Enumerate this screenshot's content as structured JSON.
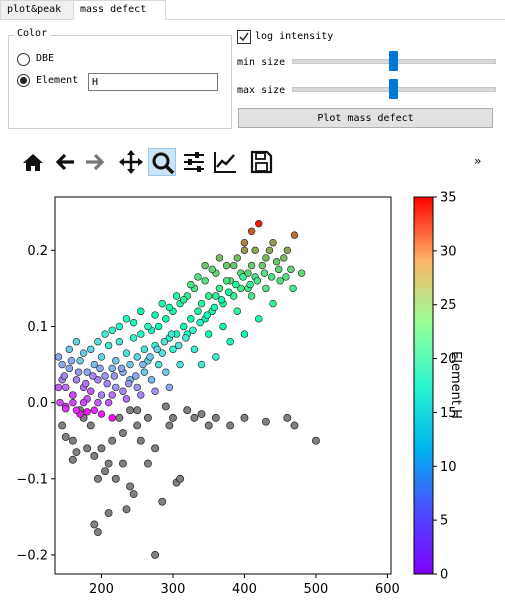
{
  "tabs": [
    {
      "label": "plot&peak",
      "active": false
    },
    {
      "label": "mass defect",
      "active": true
    }
  ],
  "color_group": {
    "title": "Color",
    "options": [
      {
        "label": "DBE",
        "selected": false
      },
      {
        "label": "Element",
        "selected": true
      }
    ],
    "element_value": "H"
  },
  "controls": {
    "log_intensity_label": "log intensity",
    "log_intensity_checked": true,
    "min_size_label": "min size",
    "min_size_level": 0.6,
    "max_size_label": "max size",
    "max_size_level": 0.6,
    "plot_button_label": "Plot  mass defect"
  },
  "toolbar": {
    "items": [
      {
        "name": "home-icon",
        "enabled": true
      },
      {
        "name": "back-arrow-icon",
        "enabled": true
      },
      {
        "name": "forward-arrow-icon",
        "enabled": false
      },
      {
        "name": "pan-icon",
        "enabled": true
      },
      {
        "name": "zoom-icon",
        "enabled": true,
        "active": true
      },
      {
        "name": "subplots-config-icon",
        "enabled": true
      },
      {
        "name": "edit-axis-icon",
        "enabled": true
      },
      {
        "name": "save-icon",
        "enabled": true
      }
    ],
    "overflow_label": "»"
  },
  "chart_data": {
    "type": "scatter",
    "title": "",
    "xlabel": "",
    "ylabel": "",
    "xlim": [
      135,
      605
    ],
    "ylim": [
      -0.225,
      0.27
    ],
    "xticks": [
      "200",
      "300",
      "400",
      "500",
      "600"
    ],
    "xtick_values": [
      200,
      300,
      400,
      500,
      600
    ],
    "yticks": [
      "0.2",
      "0.1",
      "0.0",
      "−0.1",
      "−0.2"
    ],
    "ytick_values": [
      0.2,
      0.1,
      0.0,
      -0.1,
      -0.2
    ],
    "colorbar": {
      "label": "Element H",
      "min": 0,
      "max": 35,
      "ticks": [
        "35",
        "30",
        "25",
        "20",
        "15",
        "10",
        "5",
        "0"
      ],
      "tick_values": [
        35,
        30,
        25,
        20,
        15,
        10,
        5,
        0
      ],
      "colormap": "rainbow"
    },
    "no_element_color": "#808080",
    "series": [
      {
        "points": [
          [
            140,
            0.06,
            8
          ],
          [
            145,
            0.03,
            6
          ],
          [
            150,
            0.02,
            5
          ],
          [
            155,
            0.045,
            8
          ],
          [
            160,
            0.01,
            4
          ],
          [
            165,
            0.03,
            6
          ],
          [
            170,
            0.055,
            10
          ],
          [
            175,
            0.02,
            5
          ],
          [
            180,
            0.04,
            8
          ],
          [
            185,
            0.015,
            4
          ],
          [
            190,
            0.05,
            9
          ],
          [
            195,
            0.03,
            6
          ],
          [
            200,
            0.06,
            11
          ],
          [
            205,
            0.035,
            7
          ],
          [
            210,
            0.075,
            13
          ],
          [
            215,
            0.045,
            9
          ],
          [
            220,
            0.055,
            10
          ],
          [
            225,
            0.08,
            13
          ],
          [
            230,
            0.04,
            8
          ],
          [
            235,
            0.065,
            12
          ],
          [
            240,
            0.05,
            10
          ],
          [
            245,
            0.085,
            14
          ],
          [
            250,
            0.06,
            11
          ],
          [
            255,
            0.09,
            15
          ],
          [
            260,
            0.07,
            13
          ],
          [
            265,
            0.055,
            11
          ],
          [
            270,
            0.095,
            16
          ],
          [
            275,
            0.075,
            14
          ],
          [
            280,
            0.1,
            17
          ],
          [
            285,
            0.065,
            12
          ],
          [
            290,
            0.11,
            18
          ],
          [
            295,
            0.085,
            15
          ],
          [
            300,
            0.12,
            19
          ],
          [
            305,
            0.09,
            16
          ],
          [
            310,
            0.13,
            20
          ],
          [
            315,
            0.1,
            17
          ],
          [
            320,
            0.14,
            21
          ],
          [
            325,
            0.11,
            18
          ],
          [
            330,
            0.15,
            22
          ],
          [
            335,
            0.12,
            19
          ],
          [
            340,
            0.13,
            20
          ],
          [
            345,
            0.16,
            23
          ],
          [
            350,
            0.14,
            21
          ],
          [
            355,
            0.12,
            19
          ],
          [
            360,
            0.17,
            24
          ],
          [
            365,
            0.15,
            22
          ],
          [
            370,
            0.13,
            20
          ],
          [
            375,
            0.18,
            25
          ],
          [
            380,
            0.16,
            23
          ],
          [
            385,
            0.14,
            21
          ],
          [
            390,
            0.19,
            26
          ],
          [
            395,
            0.17,
            24
          ],
          [
            400,
            0.2,
            28
          ],
          [
            405,
            0.15,
            22
          ],
          [
            410,
            0.18,
            25
          ],
          [
            415,
            0.2,
            27
          ],
          [
            420,
            0.235,
            34
          ],
          [
            430,
            0.19,
            26
          ],
          [
            440,
            0.21,
            28
          ],
          [
            450,
            0.16,
            23
          ],
          [
            460,
            0.2,
            27
          ],
          [
            470,
            0.22,
            30
          ],
          [
            480,
            0.17,
            24
          ],
          [
            400,
            0.21,
            29
          ],
          [
            410,
            0.225,
            31
          ],
          [
            385,
            0.18,
            25
          ],
          [
            360,
            0.14,
            21
          ],
          [
            345,
            0.11,
            18
          ],
          [
            320,
            0.09,
            16
          ],
          [
            300,
            0.07,
            14
          ],
          [
            280,
            0.05,
            12
          ],
          [
            260,
            0.04,
            10
          ],
          [
            240,
            0.03,
            9
          ],
          [
            220,
            0.02,
            7
          ],
          [
            200,
            0.01,
            6
          ],
          [
            180,
            0.005,
            4
          ],
          [
            160,
            0.0,
            3
          ],
          [
            150,
            -0.005,
            2
          ],
          [
            190,
            -0.01,
            2
          ],
          [
            170,
            -0.015,
            1
          ],
          [
            160,
            0.01,
            3
          ],
          [
            210,
            0.0,
            4
          ],
          [
            230,
            0.015,
            6
          ],
          [
            250,
            0.02,
            7
          ],
          [
            270,
            0.03,
            9
          ],
          [
            290,
            0.04,
            10
          ],
          [
            310,
            0.05,
            12
          ],
          [
            330,
            0.07,
            14
          ],
          [
            350,
            0.09,
            17
          ],
          [
            370,
            0.1,
            18
          ],
          [
            390,
            0.12,
            20
          ],
          [
            410,
            0.14,
            22
          ],
          [
            430,
            0.15,
            23
          ],
          [
            440,
            0.13,
            21
          ],
          [
            420,
            0.11,
            19
          ],
          [
            400,
            0.09,
            17
          ],
          [
            380,
            0.08,
            16
          ],
          [
            360,
            0.06,
            14
          ],
          [
            340,
            0.05,
            13
          ],
          [
            145,
            0.05,
            8
          ],
          [
            155,
            0.07,
            10
          ],
          [
            165,
            0.08,
            11
          ],
          [
            175,
            0.065,
            10
          ],
          [
            185,
            0.07,
            11
          ],
          [
            195,
            0.08,
            12
          ],
          [
            205,
            0.09,
            13
          ],
          [
            215,
            0.095,
            14
          ],
          [
            225,
            0.1,
            15
          ],
          [
            235,
            0.11,
            16
          ],
          [
            245,
            0.105,
            16
          ],
          [
            255,
            0.12,
            17
          ],
          [
            265,
            0.1,
            15
          ],
          [
            275,
            0.115,
            17
          ],
          [
            285,
            0.13,
            19
          ],
          [
            295,
            0.125,
            18
          ],
          [
            305,
            0.14,
            20
          ],
          [
            315,
            0.135,
            20
          ],
          [
            325,
            0.155,
            22
          ],
          [
            335,
            0.165,
            23
          ],
          [
            345,
            0.18,
            25
          ],
          [
            355,
            0.175,
            24
          ],
          [
            365,
            0.19,
            26
          ],
          [
            375,
            0.16,
            23
          ],
          [
            395,
            0.15,
            22
          ],
          [
            405,
            0.17,
            24
          ],
          [
            415,
            0.165,
            23
          ],
          [
            425,
            0.18,
            25
          ],
          [
            435,
            0.2,
            27
          ],
          [
            445,
            0.185,
            25
          ],
          [
            455,
            0.19,
            26
          ],
          [
            465,
            0.175,
            24
          ],
          [
            150,
            -0.008,
            2
          ],
          [
            165,
            -0.01,
            2
          ],
          [
            180,
            -0.012,
            1
          ],
          [
            200,
            -0.015,
            1
          ],
          [
            215,
            -0.02,
            0.5
          ],
          [
            175,
            0.0,
            3
          ],
          [
            195,
            0.0,
            4
          ],
          [
            215,
            0.01,
            5
          ],
          [
            235,
            0.005,
            5
          ],
          [
            255,
            0.01,
            6
          ],
          [
            275,
            0.015,
            7
          ],
          [
            295,
            0.02,
            8
          ],
          [
            140,
            0.02,
            4
          ],
          [
            142,
            0.0,
            3
          ],
          [
            148,
            0.035,
            6
          ],
          [
            158,
            0.055,
            8
          ],
          [
            168,
            0.04,
            7
          ],
          [
            178,
            0.025,
            5
          ],
          [
            188,
            0.035,
            6
          ],
          [
            198,
            0.045,
            8
          ],
          [
            208,
            0.025,
            6
          ],
          [
            218,
            0.035,
            7
          ],
          [
            228,
            0.045,
            8
          ],
          [
            238,
            0.025,
            7
          ],
          [
            248,
            0.035,
            8
          ],
          [
            258,
            0.05,
            9
          ],
          [
            268,
            0.06,
            10
          ],
          [
            278,
            0.07,
            11
          ],
          [
            288,
            0.08,
            12
          ],
          [
            298,
            0.09,
            13
          ],
          [
            308,
            0.075,
            12
          ],
          [
            318,
            0.085,
            13
          ],
          [
            328,
            0.095,
            14
          ],
          [
            338,
            0.105,
            15
          ],
          [
            348,
            0.115,
            16
          ],
          [
            358,
            0.125,
            17
          ],
          [
            368,
            0.135,
            18
          ],
          [
            378,
            0.145,
            19
          ],
          [
            388,
            0.155,
            20
          ],
          [
            398,
            0.165,
            21
          ],
          [
            408,
            0.155,
            21
          ],
          [
            418,
            0.16,
            22
          ],
          [
            428,
            0.17,
            23
          ],
          [
            438,
            0.165,
            23
          ],
          [
            448,
            0.175,
            24
          ],
          [
            458,
            0.165,
            23
          ],
          [
            468,
            0.15,
            22
          ]
        ]
      },
      {
        "name_hidden": true,
        "points_grey": [
          [
            145,
            -0.03
          ],
          [
            160,
            -0.05
          ],
          [
            165,
            -0.065
          ],
          [
            175,
            -0.02
          ],
          [
            185,
            -0.03
          ],
          [
            190,
            -0.07
          ],
          [
            200,
            -0.06
          ],
          [
            205,
            -0.09
          ],
          [
            210,
            -0.08
          ],
          [
            215,
            -0.05
          ],
          [
            220,
            -0.1
          ],
          [
            225,
            -0.02
          ],
          [
            230,
            -0.04
          ],
          [
            240,
            -0.11
          ],
          [
            245,
            -0.12
          ],
          [
            250,
            -0.03
          ],
          [
            255,
            -0.05
          ],
          [
            265,
            -0.08
          ],
          [
            275,
            -0.06
          ],
          [
            285,
            -0.13
          ],
          [
            295,
            -0.03
          ],
          [
            300,
            -0.02
          ],
          [
            305,
            -0.105
          ],
          [
            310,
            -0.1
          ],
          [
            320,
            -0.01
          ],
          [
            330,
            -0.02
          ],
          [
            340,
            -0.015
          ],
          [
            350,
            -0.03
          ],
          [
            360,
            -0.02
          ],
          [
            380,
            -0.03
          ],
          [
            400,
            -0.02
          ],
          [
            430,
            -0.025
          ],
          [
            460,
            -0.02
          ],
          [
            470,
            -0.03
          ],
          [
            500,
            -0.05
          ],
          [
            190,
            -0.16
          ],
          [
            195,
            -0.17
          ],
          [
            210,
            -0.145
          ],
          [
            235,
            -0.14
          ],
          [
            275,
            -0.2
          ],
          [
            240,
            -0.01
          ],
          [
            160,
            -0.075
          ],
          [
            180,
            -0.06
          ],
          [
            195,
            -0.1
          ],
          [
            230,
            -0.08
          ],
          [
            150,
            -0.045
          ],
          [
            170,
            -0.01
          ],
          [
            250,
            -0.01
          ],
          [
            265,
            -0.02
          ],
          [
            290,
            -0.005
          ]
        ]
      }
    ]
  }
}
